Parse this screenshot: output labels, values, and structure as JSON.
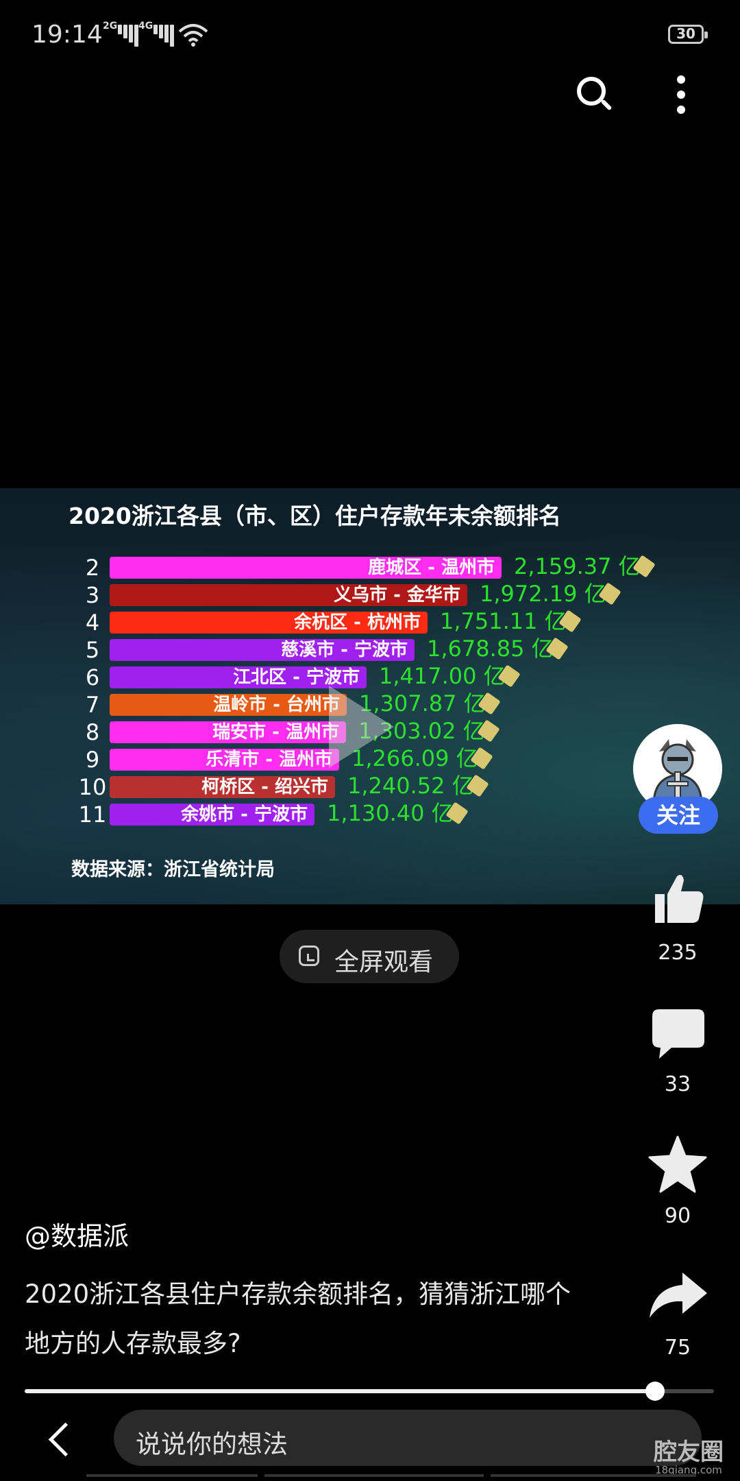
{
  "status_bar": {
    "time": "19:14",
    "signal1_label": "2G",
    "signal2_label": "4G",
    "battery": "30"
  },
  "video": {
    "chart_data": {
      "type": "bar",
      "title": "2020浙江各县（市、区）住户存款年末余额排名",
      "source": "数据来源：浙江省统计局",
      "unit": "亿",
      "rows": [
        {
          "rank": "2",
          "label": "鹿城区 - 温州市",
          "value": 2159.37,
          "value_text": "2,159.37 亿",
          "color": "#ff2cf0"
        },
        {
          "rank": "3",
          "label": "义乌市 - 金华市",
          "value": 1972.19,
          "value_text": "1,972.19 亿",
          "color": "#b01818"
        },
        {
          "rank": "4",
          "label": "余杭区 - 杭州市",
          "value": 1751.11,
          "value_text": "1,751.11 亿",
          "color": "#ff2a14"
        },
        {
          "rank": "5",
          "label": "慈溪市 - 宁波市",
          "value": 1678.85,
          "value_text": "1,678.85 亿",
          "color": "#a020f0"
        },
        {
          "rank": "6",
          "label": "江北区 - 宁波市",
          "value": 1417.0,
          "value_text": "1,417.00 亿",
          "color": "#a020f0"
        },
        {
          "rank": "7",
          "label": "温岭市 - 台州市",
          "value": 1307.87,
          "value_text": "1,307.87 亿",
          "color": "#e85a14"
        },
        {
          "rank": "8",
          "label": "瑞安市 - 温州市",
          "value": 1303.02,
          "value_text": "1,303.02 亿",
          "color": "#ff2cf0"
        },
        {
          "rank": "9",
          "label": "乐清市 - 温州市",
          "value": 1266.09,
          "value_text": "1,266.09 亿",
          "color": "#ff2cf0"
        },
        {
          "rank": "10",
          "label": "柯桥区 - 绍兴市",
          "value": 1240.52,
          "value_text": "1,240.52 亿",
          "color": "#b83030"
        },
        {
          "rank": "11",
          "label": "余姚市 - 宁波市",
          "value": 1130.4,
          "value_text": "1,130.40 亿",
          "color": "#a020f0"
        }
      ]
    }
  },
  "fullscreen_label": "全屏观看",
  "rail": {
    "follow_label": "关注",
    "likes": "235",
    "comments": "33",
    "favorites": "90",
    "shares": "75"
  },
  "post": {
    "author": "@数据派",
    "description": "2020浙江各县住户存款余额排名，猜猜浙江哪个地方的人存款最多?"
  },
  "progress": 0.915,
  "comment_placeholder": "说说你的想法",
  "watermark": {
    "main": "腔友圈",
    "sub": "18qiang.com"
  }
}
